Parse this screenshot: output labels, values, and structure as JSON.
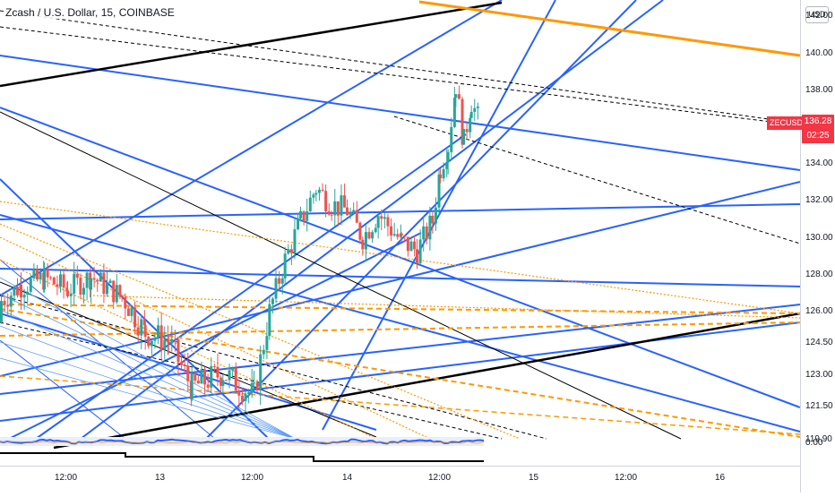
{
  "title": "Zcash / U.S. Dollar, 15, COINBASE",
  "currency": "USD",
  "symbol_label": "ZECUSD",
  "last_price": "136.28",
  "countdown": "02:25",
  "colors": {
    "up": "#26a69a",
    "down": "#ef5350",
    "blue_line": "#2962ff",
    "orange_line": "#ff9800",
    "black_line": "#000000",
    "price_tag": "#f23645"
  },
  "chart_data": {
    "type": "candlestick",
    "title": "Zcash / U.S. Dollar, 15, COINBASE",
    "y_ticks": [
      "142.00",
      "140.00",
      "138.00",
      "136.00",
      "134.00",
      "132.00",
      "130.00",
      "128.00",
      "126.00",
      "124.50",
      "123.00",
      "121.50",
      "119.90"
    ],
    "x_ticks": [
      "12:00",
      "13",
      "12:00",
      "14",
      "12:00",
      "15",
      "12:00",
      "16"
    ],
    "ylim": [
      119.2,
      143.0
    ],
    "last_value": 136.28,
    "indicator_pane_value": "0.00",
    "candle_close_path": [
      {
        "t": "12 00:00",
        "v": 125.5
      },
      {
        "t": "12 06:00",
        "v": 127.4
      },
      {
        "t": "12 09:00",
        "v": 127.8
      },
      {
        "t": "12 12:00",
        "v": 127.2
      },
      {
        "t": "12 15:00",
        "v": 127.9
      },
      {
        "t": "12 19:00",
        "v": 126.8
      },
      {
        "t": "12 22:00",
        "v": 125.0
      },
      {
        "t": "13 01:00",
        "v": 124.6
      },
      {
        "t": "13 04:00",
        "v": 122.4
      },
      {
        "t": "13 08:00",
        "v": 123.1
      },
      {
        "t": "13 12:00",
        "v": 122.0
      },
      {
        "t": "13 14:00",
        "v": 126.0
      },
      {
        "t": "13 16:00",
        "v": 128.8
      },
      {
        "t": "13 18:00",
        "v": 130.9
      },
      {
        "t": "13 20:00",
        "v": 132.7
      },
      {
        "t": "13 22:00",
        "v": 131.8
      },
      {
        "t": "14 00:00",
        "v": 131.5
      },
      {
        "t": "14 02:00",
        "v": 130.0
      },
      {
        "t": "14 04:00",
        "v": 131.3
      },
      {
        "t": "14 07:00",
        "v": 129.8
      },
      {
        "t": "14 09:00",
        "v": 129.3
      },
      {
        "t": "14 11:00",
        "v": 130.9
      },
      {
        "t": "14 12:00",
        "v": 133.8
      },
      {
        "t": "14 13:00",
        "v": 135.0
      },
      {
        "t": "14 14:00",
        "v": 138.3
      },
      {
        "t": "14 15:00",
        "v": 135.2
      },
      {
        "t": "14 16:00",
        "v": 137.4
      },
      {
        "t": "14 17:00",
        "v": 136.3
      }
    ]
  }
}
